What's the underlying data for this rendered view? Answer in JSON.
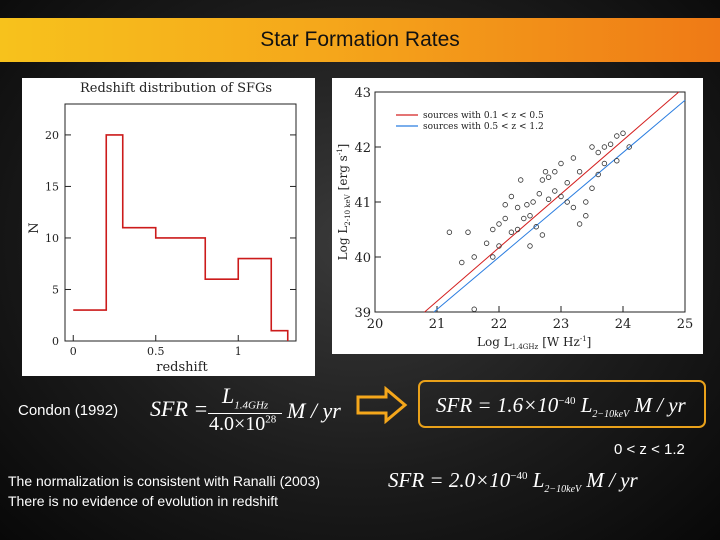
{
  "slide": {
    "title": "Star Formation Rates",
    "condon_label": "Condon (1992)",
    "range_label": "0 < z < 1.2",
    "note_line1": "The normalization is consistent with Ranalli (2003)",
    "note_line2": "There is no evidence of evolution in redshift",
    "accent_color": "#f5a71b"
  },
  "equations": {
    "eq1_lhs": "SFR =",
    "eq1_num": "L",
    "eq1_num_sub": "1.4GHz",
    "eq1_den": "4.0×10",
    "eq1_den_sup": "28",
    "eq1_unit": "M / yr",
    "eq2": "SFR = 1.6×10",
    "eq2_sup": "−40",
    "eq2_L": "L",
    "eq2_sub": "2−10keV",
    "eq2_unit": "M / yr",
    "eq3": "SFR = 2.0×10",
    "eq3_sup": "−40",
    "eq3_L": "L",
    "eq3_sub": "2−10keV",
    "eq3_unit": "M / yr",
    "arrow_icon": "right-arrow-icon"
  },
  "chart_data": [
    {
      "type": "bar",
      "title": "Redshift distribution of SFGs",
      "xlabel": "redshift",
      "ylabel": "N",
      "xlim": [
        -0.05,
        1.35
      ],
      "ylim": [
        0,
        23
      ],
      "xticks": [
        "0",
        "0.5",
        "1"
      ],
      "yticks": [
        "0",
        "5",
        "10",
        "15",
        "20"
      ],
      "bins_edges": [
        0,
        0.1,
        0.2,
        0.3,
        0.4,
        0.5,
        0.6,
        0.7,
        0.8,
        0.9,
        1.0,
        1.1,
        1.2,
        1.3
      ],
      "values": [
        3,
        3,
        20,
        11,
        11,
        10,
        10,
        10,
        6,
        6,
        8,
        8,
        1
      ],
      "color": "#cc1b1b"
    },
    {
      "type": "scatter",
      "xlabel": "Log L",
      "xlabel_sub": "1.4GHz",
      "xlabel_unit": "[W Hz",
      "xlabel_unit_sup": "-1",
      "xlabel_close": "]",
      "ylabel": "Log L",
      "ylabel_sub": "2-10 keV",
      "ylabel_unit": "[erg s",
      "ylabel_unit_sup": "-1",
      "ylabel_close": "]",
      "xlim": [
        20,
        25
      ],
      "ylim": [
        39,
        43
      ],
      "xticks": [
        "20",
        "21",
        "22",
        "23",
        "24",
        "25"
      ],
      "yticks": [
        "39",
        "40",
        "41",
        "42",
        "43"
      ],
      "legend": [
        {
          "label": "sources with 0.1 < z < 0.5",
          "color": "#d42020"
        },
        {
          "label": "sources with 0.5 < z < 1.2",
          "color": "#2a7de0"
        }
      ],
      "lines": [
        {
          "color": "#d42020",
          "x": [
            20.8,
            24.9
          ],
          "y": [
            39.0,
            43.0
          ]
        },
        {
          "color": "#2a7de0",
          "x": [
            20.95,
            25.0
          ],
          "y": [
            39.0,
            42.85
          ]
        }
      ],
      "points": [
        [
          21.6,
          39.05
        ],
        [
          21.4,
          39.9
        ],
        [
          21.2,
          40.45
        ],
        [
          21.6,
          40.0
        ],
        [
          21.8,
          40.25
        ],
        [
          21.9,
          40.5
        ],
        [
          22.0,
          40.6
        ],
        [
          22.1,
          40.7
        ],
        [
          22.2,
          40.45
        ],
        [
          22.3,
          40.5
        ],
        [
          22.4,
          40.7
        ],
        [
          22.5,
          40.75
        ],
        [
          22.6,
          40.55
        ],
        [
          22.1,
          40.95
        ],
        [
          22.2,
          41.1
        ],
        [
          22.3,
          40.9
        ],
        [
          22.55,
          41.0
        ],
        [
          22.65,
          41.15
        ],
        [
          22.8,
          41.05
        ],
        [
          22.9,
          41.2
        ],
        [
          22.7,
          41.4
        ],
        [
          22.8,
          41.45
        ],
        [
          22.75,
          41.55
        ],
        [
          23.1,
          41.35
        ],
        [
          23.0,
          41.1
        ],
        [
          23.2,
          40.9
        ],
        [
          23.3,
          40.6
        ],
        [
          23.4,
          41.0
        ],
        [
          23.5,
          41.25
        ],
        [
          23.6,
          41.5
        ],
        [
          23.7,
          41.7
        ],
        [
          23.5,
          42.0
        ],
        [
          23.6,
          41.9
        ],
        [
          23.2,
          41.8
        ],
        [
          23.0,
          41.7
        ],
        [
          22.9,
          41.55
        ],
        [
          23.1,
          41.0
        ],
        [
          23.3,
          41.55
        ],
        [
          23.8,
          42.05
        ],
        [
          23.9,
          42.2
        ],
        [
          24.0,
          42.25
        ],
        [
          23.7,
          42.0
        ],
        [
          24.1,
          42.0
        ],
        [
          23.9,
          41.75
        ],
        [
          22.5,
          40.2
        ],
        [
          22.0,
          40.2
        ],
        [
          21.9,
          40.0
        ],
        [
          22.7,
          40.4
        ],
        [
          22.45,
          40.95
        ],
        [
          23.4,
          40.75
        ],
        [
          22.35,
          41.4
        ],
        [
          21.5,
          40.45
        ]
      ]
    }
  ]
}
